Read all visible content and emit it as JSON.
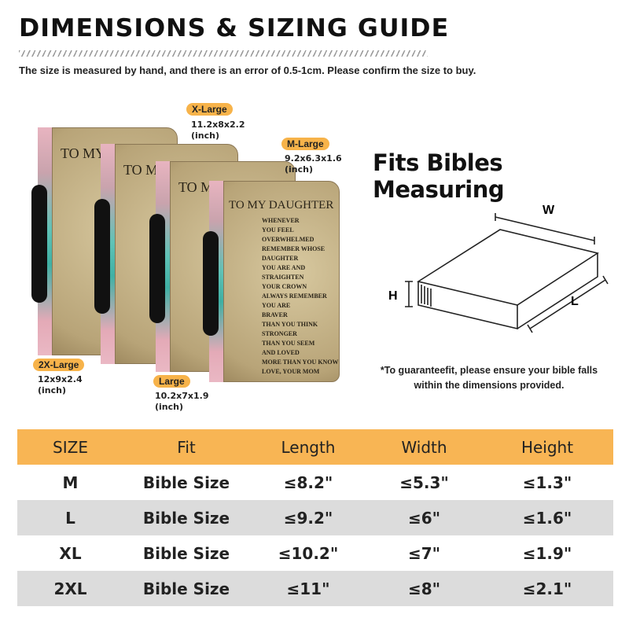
{
  "header": {
    "title": "DIMENSIONS & SIZING GUIDE",
    "subtitle": "The size is measured by hand, and there is an error of 0.5-1cm. Please confirm the size to buy."
  },
  "product": {
    "cover_title": "TO MY DAUGHTER",
    "cover_title_partial": "TO MY",
    "poem": [
      "WHENEVER",
      "YOU FEEL",
      "OVERWHELMED",
      "REMEMBER WHOSE",
      "DAUGHTER",
      "YOU ARE AND",
      "STRAIGHTEN",
      "YOUR CROWN",
      "ALWAYS REMEMBER YOU ARE",
      "BRAVER",
      "THAN YOU THINK",
      "STRONGER",
      "THAN YOU SEEM",
      "AND LOVED",
      "MORE THAN YOU KNOW",
      "LOVE, YOUR MOM"
    ],
    "sizes": [
      {
        "label": "X-Large",
        "dims": "11.2x8x2.2",
        "unit": "(inch)"
      },
      {
        "label": "M-Large",
        "dims": "9.2x6.3x1.6",
        "unit": "(inch)"
      },
      {
        "label": "2X-Large",
        "dims": "12x9x2.4",
        "unit": "(inch)"
      },
      {
        "label": "Large",
        "dims": "10.2x7x1.9",
        "unit": "(inch)"
      }
    ]
  },
  "diagram": {
    "heading": "Fits Bibles Measuring",
    "w": "W",
    "h": "H",
    "l": "L",
    "note_line1": "*To guaranteefit, please ensure your bible falls",
    "note_line2": "within the dimensions provided."
  },
  "table": {
    "headers": [
      "SIZE",
      "Fit",
      "Length",
      "Width",
      "Height"
    ],
    "rows": [
      [
        "M",
        "Bible Size",
        "≤8.2\"",
        "≤5.3\"",
        "≤1.3\""
      ],
      [
        "L",
        "Bible Size",
        "≤9.2\"",
        "≤6\"",
        "≤1.6\""
      ],
      [
        "XL",
        "Bible Size",
        "≤10.2\"",
        "≤7\"",
        "≤1.9\""
      ],
      [
        "2XL",
        "Bible Size",
        "≤11\"",
        "≤8\"",
        "≤2.1\""
      ]
    ]
  },
  "colors": {
    "accent": "#f8b554",
    "row_alt": "#dcdcdc"
  }
}
